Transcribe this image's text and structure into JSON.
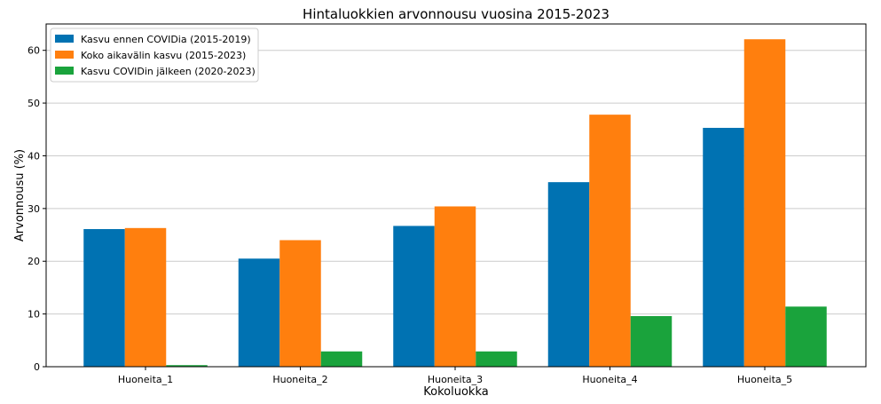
{
  "chart_data": {
    "type": "bar",
    "title": "Hintaluokkien arvonnousu vuosina 2015-2023",
    "xlabel": "Kokoluokka",
    "ylabel": "Arvonnousu (%)",
    "categories": [
      "Huoneita_1",
      "Huoneita_2",
      "Huoneita_3",
      "Huoneita_4",
      "Huoneita_5"
    ],
    "ylim": [
      0,
      65
    ],
    "yticks": [
      0,
      10,
      20,
      30,
      40,
      50,
      60
    ],
    "grid": true,
    "legend_position": "top-left",
    "series": [
      {
        "name": "Kasvu ennen COVIDia (2015-2019)",
        "color": "#0072b2",
        "values": [
          26.1,
          20.5,
          26.7,
          35.0,
          45.3
        ]
      },
      {
        "name": "Koko aikavälin kasvu (2015-2023)",
        "color": "#ff7f0e",
        "values": [
          26.3,
          24.0,
          30.4,
          47.8,
          62.1
        ]
      },
      {
        "name": "Kasvu COVIDin jälkeen (2020-2023)",
        "color": "#1aa33c",
        "values": [
          0.3,
          2.9,
          2.9,
          9.6,
          11.4
        ]
      }
    ]
  }
}
